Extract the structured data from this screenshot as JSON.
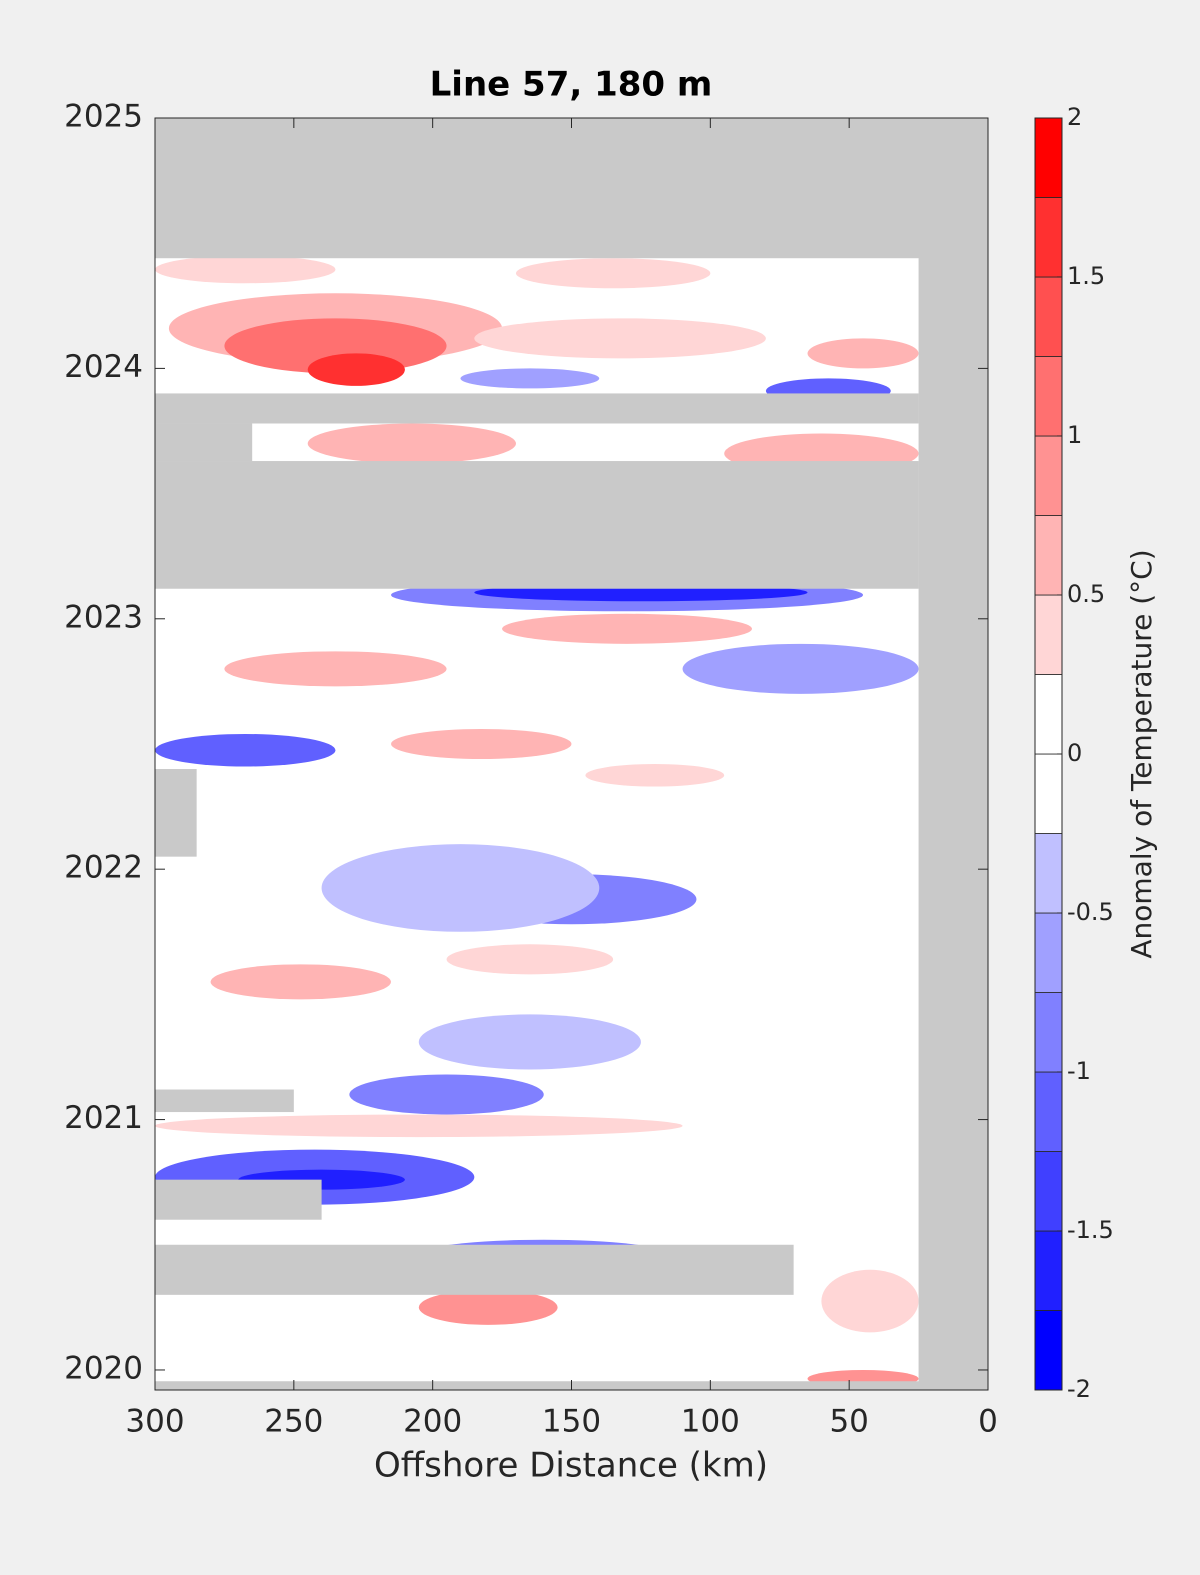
{
  "chart_data": {
    "type": "contour",
    "title": "Line 57, 180 m",
    "xlabel": "Offshore Distance (km)",
    "xlim": [
      300,
      0
    ],
    "xticks": [
      300,
      250,
      200,
      150,
      100,
      50,
      0
    ],
    "ylim": [
      2019.92,
      2025
    ],
    "yticks": [
      2020,
      2021,
      2022,
      2023,
      2024,
      2025
    ],
    "missing_color": "#c9c9c9",
    "colorbar": {
      "label": "Anomaly of Temperature (°C)",
      "levels": [
        -2,
        -1.75,
        -1.5,
        -1.25,
        -1,
        -0.75,
        -0.5,
        -0.25,
        0,
        0.25,
        0.5,
        0.75,
        1,
        1.25,
        1.5,
        1.75,
        2
      ],
      "colors": [
        "#0000ff",
        "#2020ff",
        "#4040ff",
        "#6060ff",
        "#8080ff",
        "#a0a0ff",
        "#c0c0ff",
        "#ffffff",
        "#ffffff",
        "#ffd6d6",
        "#ffb4b4",
        "#ff9292",
        "#ff7070",
        "#ff5050",
        "#ff3030",
        "#ff0000"
      ],
      "ticks": [
        -2,
        -1.5,
        -1,
        -0.5,
        0,
        0.5,
        1,
        1.5,
        2
      ]
    },
    "patches": [
      {
        "x": [
          295,
          175
        ],
        "y": [
          2024.02,
          2024.3
        ],
        "value": 0.6
      },
      {
        "x": [
          275,
          195
        ],
        "y": [
          2023.98,
          2024.2
        ],
        "value": 1.1
      },
      {
        "x": [
          245,
          210
        ],
        "y": [
          2023.93,
          2024.06
        ],
        "value": 1.6
      },
      {
        "x": [
          185,
          80
        ],
        "y": [
          2024.04,
          2024.2
        ],
        "value": 0.5
      },
      {
        "x": [
          65,
          25
        ],
        "y": [
          2024.0,
          2024.12
        ],
        "value": 0.7
      },
      {
        "x": [
          300,
          235
        ],
        "y": [
          2024.34,
          2024.45
        ],
        "value": 0.4
      },
      {
        "x": [
          170,
          100
        ],
        "y": [
          2024.32,
          2024.44
        ],
        "value": 0.4
      },
      {
        "x": [
          190,
          140
        ],
        "y": [
          2023.92,
          2024.0
        ],
        "value": -0.6
      },
      {
        "x": [
          80,
          35
        ],
        "y": [
          2023.86,
          2023.96
        ],
        "value": -1.2
      },
      {
        "x": [
          245,
          170
        ],
        "y": [
          2023.62,
          2023.78
        ],
        "value": 0.7
      },
      {
        "x": [
          95,
          25
        ],
        "y": [
          2023.58,
          2023.74
        ],
        "value": 0.6
      },
      {
        "x": [
          215,
          45
        ],
        "y": [
          2023.03,
          2023.16
        ],
        "value": -0.8
      },
      {
        "x": [
          185,
          65
        ],
        "y": [
          2023.07,
          2023.14
        ],
        "value": -1.6
      },
      {
        "x": [
          175,
          85
        ],
        "y": [
          2022.9,
          2023.02
        ],
        "value": 0.6
      },
      {
        "x": [
          275,
          195
        ],
        "y": [
          2022.73,
          2022.87
        ],
        "value": 0.6
      },
      {
        "x": [
          110,
          25
        ],
        "y": [
          2022.7,
          2022.9
        ],
        "value": -0.5
      },
      {
        "x": [
          300,
          235
        ],
        "y": [
          2022.41,
          2022.54
        ],
        "value": -1.1
      },
      {
        "x": [
          215,
          150
        ],
        "y": [
          2022.44,
          2022.56
        ],
        "value": 0.6
      },
      {
        "x": [
          145,
          95
        ],
        "y": [
          2022.33,
          2022.42
        ],
        "value": 0.5
      },
      {
        "x": [
          195,
          105
        ],
        "y": [
          2021.78,
          2021.98
        ],
        "value": -0.8
      },
      {
        "x": [
          240,
          140
        ],
        "y": [
          2021.75,
          2022.1
        ],
        "value": -0.4
      },
      {
        "x": [
          280,
          215
        ],
        "y": [
          2021.48,
          2021.62
        ],
        "value": 0.6
      },
      {
        "x": [
          195,
          135
        ],
        "y": [
          2021.58,
          2021.7
        ],
        "value": 0.4
      },
      {
        "x": [
          205,
          125
        ],
        "y": [
          2021.2,
          2021.42
        ],
        "value": -0.4
      },
      {
        "x": [
          230,
          160
        ],
        "y": [
          2021.02,
          2021.18
        ],
        "value": -0.8
      },
      {
        "x": [
          300,
          110
        ],
        "y": [
          2020.93,
          2021.02
        ],
        "value": 0.4
      },
      {
        "x": [
          300,
          185
        ],
        "y": [
          2020.66,
          2020.88
        ],
        "value": -1.0
      },
      {
        "x": [
          270,
          210
        ],
        "y": [
          2020.72,
          2020.8
        ],
        "value": -1.5
      },
      {
        "x": [
          205,
          115
        ],
        "y": [
          2020.4,
          2020.52
        ],
        "value": -0.9
      },
      {
        "x": [
          170,
          130
        ],
        "y": [
          2020.43,
          2020.49
        ],
        "value": -1.4
      },
      {
        "x": [
          205,
          155
        ],
        "y": [
          2020.18,
          2020.32
        ],
        "value": 0.8
      },
      {
        "x": [
          60,
          25
        ],
        "y": [
          2020.15,
          2020.4
        ],
        "value": 0.5
      },
      {
        "x": [
          65,
          25
        ],
        "y": [
          2019.93,
          2020.0
        ],
        "value": 0.9
      }
    ],
    "missing": [
      {
        "x": [
          300,
          0
        ],
        "y": [
          2024.44,
          2025
        ]
      },
      {
        "x": [
          25,
          0
        ],
        "y": [
          2019.92,
          2025
        ]
      },
      {
        "x": [
          300,
          0
        ],
        "y": [
          2019.92,
          2019.955
        ]
      },
      {
        "x": [
          300,
          25
        ],
        "y": [
          2023.78,
          2023.9
        ]
      },
      {
        "x": [
          300,
          25
        ],
        "y": [
          2023.12,
          2023.63
        ]
      },
      {
        "x": [
          300,
          265
        ],
        "y": [
          2023.63,
          2023.78
        ]
      },
      {
        "x": [
          300,
          70
        ],
        "y": [
          2020.3,
          2020.5
        ]
      },
      {
        "x": [
          300,
          240
        ],
        "y": [
          2020.6,
          2020.76
        ]
      },
      {
        "x": [
          300,
          250
        ],
        "y": [
          2021.03,
          2021.12
        ]
      },
      {
        "x": [
          300,
          285
        ],
        "y": [
          2022.05,
          2022.4
        ]
      }
    ]
  }
}
